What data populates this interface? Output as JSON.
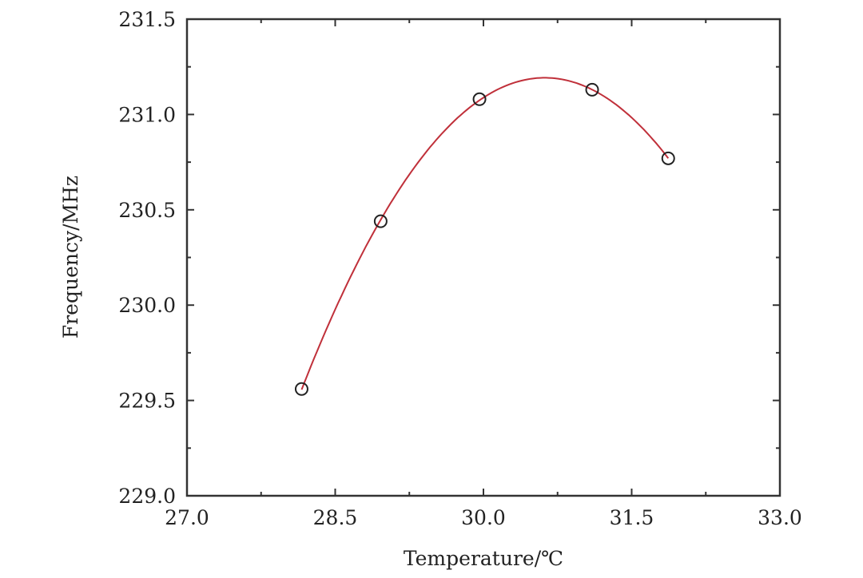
{
  "chart_data": {
    "type": "scatter",
    "title": "",
    "xlabel": "Temperature/℃",
    "ylabel": "Frequency/MHz",
    "xlim": [
      27.0,
      33.0
    ],
    "ylim": [
      229.0,
      231.5
    ],
    "xticks": [
      "27.0",
      "28.5",
      "30.0",
      "31.5",
      "33.0"
    ],
    "yticks": [
      "229.0",
      "229.5",
      "230.0",
      "230.5",
      "231.0",
      "231.5"
    ],
    "grid": false,
    "series": [
      {
        "x": [
          28.16,
          28.96,
          29.96,
          31.1,
          31.87
        ],
        "y": [
          229.56,
          230.44,
          231.08,
          231.13,
          230.77
        ],
        "marker": "open-circle",
        "color": "#222222",
        "fit": "quadratic",
        "fit_color": "#c0303a"
      }
    ]
  }
}
